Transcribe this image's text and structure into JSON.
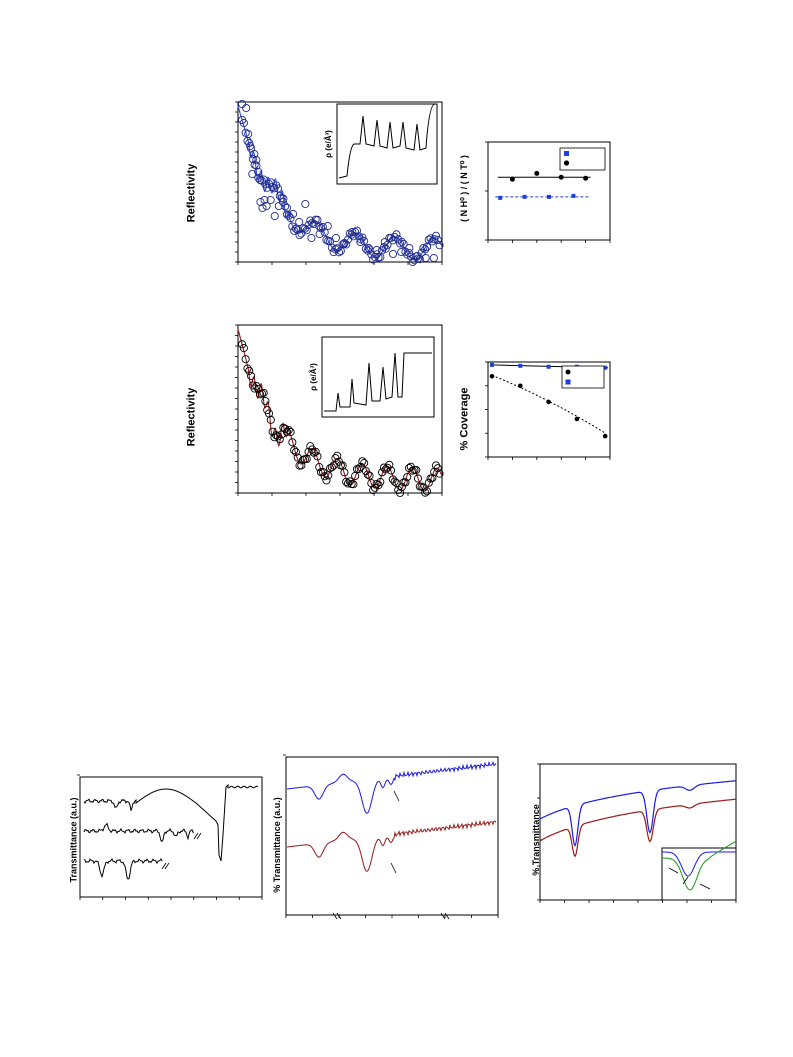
{
  "labels": {
    "reflectivity_top": "Reflectivity",
    "reflectivity_bottom": "Reflectivity",
    "rho_top": "ρ (e/Å³)",
    "rho_bottom": "ρ (e/Å³)",
    "ratio": "( N H⁰ ) / ( N T⁰ )",
    "coverage": "% Coverage",
    "transmittance_au": "Transmittance (a.u.)",
    "pct_transmittance_au": "% Transmittance (a.u.)",
    "pct_transmittance": "% Transmittance"
  },
  "chart_data": [
    {
      "id": "reflectivity-blue",
      "type": "scatter",
      "xlabel": "",
      "ylabel": "Reflectivity",
      "log_y": true,
      "xlim": [
        0,
        1
      ],
      "ylim": [
        -8,
        0
      ],
      "series": [
        {
          "role": "data-circles",
          "color": "#1f2a8c",
          "x": [
            0.02,
            0.04,
            0.05,
            0.06,
            0.07,
            0.08,
            0.09,
            0.1,
            0.11,
            0.12,
            0.13,
            0.14,
            0.16,
            0.18,
            0.2,
            0.22,
            0.24,
            0.27,
            0.3,
            0.33,
            0.36,
            0.4,
            0.44,
            0.48,
            0.52,
            0.56,
            0.6,
            0.64,
            0.68,
            0.72,
            0.76,
            0.8,
            0.84,
            0.88,
            0.92,
            0.96
          ],
          "y": [
            -0.1,
            -0.3,
            -1.6,
            -2.2,
            -3.6,
            -2.6,
            -2.9,
            -3.8,
            -5.0,
            -5.3,
            -4.9,
            -5.2,
            -4.9,
            -5.7,
            -5.2,
            -5.0,
            -5.3,
            -5.6,
            -6.0,
            -5.1,
            -6.8,
            -6.6,
            -6.2,
            -6.8,
            -7.1,
            -6.5,
            -7.0,
            -7.3,
            -7.4,
            -7.0,
            -7.6,
            -7.5,
            -7.3,
            -7.7,
            -7.8,
            -7.8
          ]
        },
        {
          "role": "fit-line",
          "color": "#2f4fe0"
        }
      ],
      "inset": {
        "ylabel": "ρ (e/Å³)"
      }
    },
    {
      "id": "ratio",
      "type": "scatter",
      "xlabel": "",
      "ylabel": "( N H⁰ ) / ( N T⁰ )",
      "xlim": [
        0,
        5
      ],
      "ylim": [
        0,
        1
      ],
      "series": [
        {
          "role": "black-circles",
          "color": "#000000",
          "x": [
            1,
            2,
            3,
            4
          ],
          "y": [
            0.62,
            0.68,
            0.64,
            0.63
          ]
        },
        {
          "role": "blue-squares",
          "color": "#1e3fe0",
          "x": [
            0.5,
            1.5,
            2.5,
            3.5
          ],
          "y": [
            0.43,
            0.44,
            0.44,
            0.45
          ]
        }
      ]
    },
    {
      "id": "reflectivity-red",
      "type": "scatter",
      "xlabel": "",
      "ylabel": "Reflectivity",
      "log_y": true,
      "xlim": [
        0,
        1
      ],
      "ylim": [
        -8,
        0
      ],
      "series": [
        {
          "role": "data-circles",
          "color": "#000000"
        },
        {
          "role": "fit-line",
          "color": "#a01818"
        }
      ],
      "inset": {
        "ylabel": "ρ (e/Å³)"
      }
    },
    {
      "id": "coverage",
      "type": "scatter",
      "xlabel": "",
      "ylabel": "% Coverage",
      "xlim": [
        0,
        5
      ],
      "ylim": [
        0,
        100
      ],
      "series": [
        {
          "role": "black-circles",
          "color": "#000000",
          "x": [
            0,
            1,
            2,
            3,
            4
          ],
          "y": [
            85,
            75,
            58,
            40,
            22
          ]
        },
        {
          "role": "blue-squares",
          "color": "#1e3fe0",
          "x": [
            0,
            1,
            2,
            3,
            4
          ],
          "y": [
            97,
            96,
            95,
            95,
            94
          ]
        }
      ]
    },
    {
      "id": "ir-three-traces",
      "type": "line",
      "xlabel": "",
      "ylabel": "Transmittance (a.u.)",
      "series": [
        {
          "role": "top",
          "color": "#000000"
        },
        {
          "role": "middle",
          "color": "#000000"
        },
        {
          "role": "bottom",
          "color": "#000000"
        }
      ]
    },
    {
      "id": "ir-blue-red",
      "type": "line",
      "xlabel": "",
      "ylabel": "% Transmittance (a.u.)",
      "series": [
        {
          "role": "blue",
          "color": "#1a1ae6"
        },
        {
          "role": "red",
          "color": "#9a1a1a"
        }
      ]
    },
    {
      "id": "ir-smooth",
      "type": "line",
      "xlabel": "",
      "ylabel": "% Transmittance",
      "series": [
        {
          "role": "blue",
          "color": "#1a1ae6"
        },
        {
          "role": "red",
          "color": "#9a1a1a"
        },
        {
          "role": "inset-green",
          "color": "#1a9a1a"
        }
      ]
    }
  ]
}
